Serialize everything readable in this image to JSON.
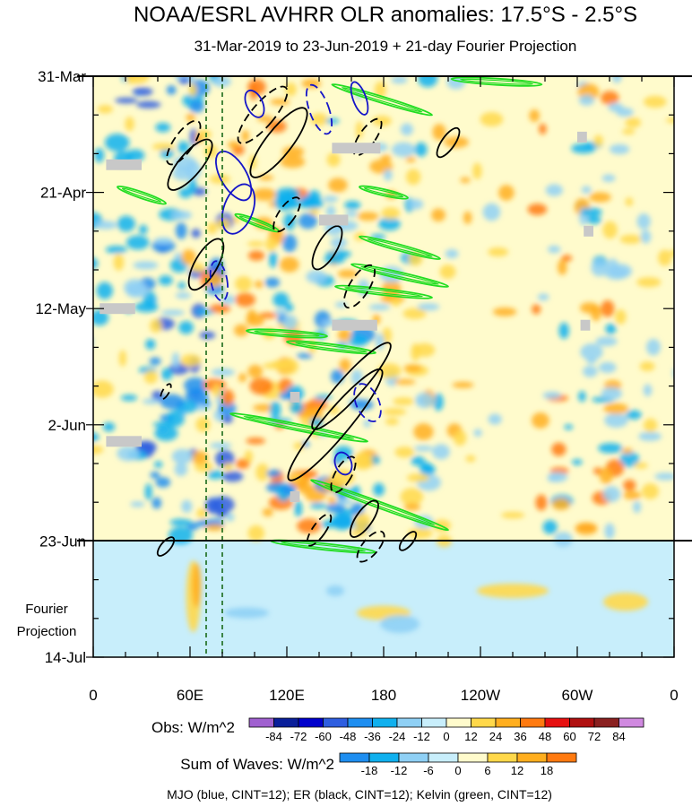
{
  "chart_data": {
    "type": "heatmap",
    "title": "NOAA/ESRL AVHRR OLR anomalies: 17.5°S - 2.5°S",
    "subtitle": "31-Mar-2019 to 23-Jun-2019 + 21-day Fourier Projection",
    "x_axis": {
      "ticks": [
        "0",
        "60E",
        "120E",
        "180",
        "120W",
        "60W",
        "0"
      ],
      "tick_values": [
        0,
        60,
        120,
        180,
        240,
        300,
        360
      ],
      "range": [
        0,
        360
      ]
    },
    "y_axis": {
      "ticks": [
        "31-Mar",
        "21-Apr",
        "12-May",
        "2-Jun",
        "23-Jun",
        "14-Jul"
      ],
      "tick_values": [
        0,
        21,
        42,
        63,
        84,
        105
      ],
      "range": [
        0,
        105
      ]
    },
    "projection_label_line1": "Fourier",
    "projection_label_line2": "Projection",
    "obs_colorbar": {
      "label": "Obs: W/m^2",
      "levels": [
        "-84",
        "-72",
        "-60",
        "-48",
        "-36",
        "-24",
        "-12",
        "0",
        "12",
        "24",
        "36",
        "48",
        "60",
        "72",
        "84"
      ],
      "colors": [
        "#a060d0",
        "#0a1f9a",
        "#0000cc",
        "#2e5ee0",
        "#1e8ef0",
        "#10b0ee",
        "#8fd0f5",
        "#c8eefb",
        "#fffbcc",
        "#ffd84a",
        "#ffae1e",
        "#ff7a10",
        "#e61010",
        "#b01010",
        "#8a2020",
        "#d089e0"
      ]
    },
    "waves_colorbar": {
      "label": "Sum of Waves: W/m^2",
      "levels": [
        "-18",
        "-12",
        "-6",
        "0",
        "6",
        "12",
        "18"
      ],
      "colors": [
        "#1e8ef0",
        "#10b0ee",
        "#8fd0f5",
        "#c8eefb",
        "#fffbcc",
        "#ffd84a",
        "#ffae1e",
        "#ff7a10"
      ]
    },
    "footer": "MJO (blue, CINT=12); ER (black, CINT=12); Kelvin (green, CINT=12)",
    "vertical_lines_x": [
      70,
      80
    ],
    "observed_end_day": 84,
    "kelvin_contours": [
      {
        "x1": 148,
        "d1": 1.5,
        "x2": 210,
        "d2": 7
      },
      {
        "x1": 222,
        "d1": 0.5,
        "x2": 278,
        "d2": 1.5
      },
      {
        "x1": 15,
        "d1": 20,
        "x2": 45,
        "d2": 23
      },
      {
        "x1": 88,
        "d1": 25,
        "x2": 115,
        "d2": 28
      },
      {
        "x1": 165,
        "d1": 20,
        "x2": 195,
        "d2": 22
      },
      {
        "x1": 165,
        "d1": 29,
        "x2": 215,
        "d2": 33
      },
      {
        "x1": 160,
        "d1": 34,
        "x2": 220,
        "d2": 38
      },
      {
        "x1": 150,
        "d1": 38,
        "x2": 210,
        "d2": 40
      },
      {
        "x1": 95,
        "d1": 46,
        "x2": 145,
        "d2": 47
      },
      {
        "x1": 120,
        "d1": 48,
        "x2": 175,
        "d2": 50
      },
      {
        "x1": 85,
        "d1": 61,
        "x2": 170,
        "d2": 66
      },
      {
        "x1": 135,
        "d1": 73,
        "x2": 220,
        "d2": 82
      },
      {
        "x1": 110,
        "d1": 84,
        "x2": 175,
        "d2": 86
      }
    ],
    "er_contours": [
      {
        "cx": 56,
        "cy": 12,
        "rx": 6,
        "ry": 18,
        "rot": 35,
        "dash": true
      },
      {
        "cx": 60,
        "cy": 16,
        "rx": 7,
        "ry": 22,
        "rot": 40,
        "dash": false
      },
      {
        "cx": 105,
        "cy": 7,
        "rx": 7,
        "ry": 25,
        "rot": 40,
        "dash": true
      },
      {
        "cx": 115,
        "cy": 12,
        "rx": 8,
        "ry": 30,
        "rot": 38,
        "dash": false
      },
      {
        "cx": 70,
        "cy": 34,
        "rx": 7,
        "ry": 20,
        "rot": 30,
        "dash": false
      },
      {
        "cx": 145,
        "cy": 31,
        "rx": 6,
        "ry": 17,
        "rot": 30,
        "dash": false
      },
      {
        "cx": 165,
        "cy": 38,
        "rx": 6,
        "ry": 17,
        "rot": 32,
        "dash": true
      },
      {
        "cx": 120,
        "cy": 25,
        "rx": 5,
        "ry": 14,
        "rot": 35,
        "dash": true
      },
      {
        "cx": 170,
        "cy": 11,
        "rx": 5,
        "ry": 15,
        "rot": 35,
        "dash": true
      },
      {
        "cx": 220,
        "cy": 12,
        "rx": 4,
        "ry": 12,
        "rot": 35,
        "dash": false
      },
      {
        "cx": 150,
        "cy": 63,
        "rx": 8,
        "ry": 50,
        "rot": 40,
        "dash": false
      },
      {
        "cx": 160,
        "cy": 56,
        "rx": 7,
        "ry": 40,
        "rot": 42,
        "dash": false
      },
      {
        "cx": 155,
        "cy": 72,
        "rx": 5,
        "ry": 14,
        "rot": 30,
        "dash": true
      },
      {
        "cx": 168,
        "cy": 80,
        "rx": 5,
        "ry": 15,
        "rot": 35,
        "dash": false
      },
      {
        "cx": 172,
        "cy": 85,
        "rx": 5,
        "ry": 13,
        "rot": 40,
        "dash": true
      },
      {
        "cx": 140,
        "cy": 82,
        "rx": 4,
        "ry": 13,
        "rot": 35,
        "dash": true
      },
      {
        "cx": 45,
        "cy": 57,
        "rx": 2,
        "ry": 6,
        "rot": 30,
        "dash": true
      },
      {
        "cx": 45,
        "cy": 85,
        "rx": 3,
        "ry": 8,
        "rot": 40,
        "dash": false
      },
      {
        "cx": 195,
        "cy": 84,
        "rx": 3,
        "ry": 8,
        "rot": 40,
        "dash": false
      }
    ],
    "mjo_contours": [
      {
        "cx": 87,
        "cy": 18,
        "rx": 8,
        "ry": 19,
        "rot": -30,
        "dash": false
      },
      {
        "cx": 90,
        "cy": 24,
        "rx": 9,
        "ry": 18,
        "rot": 20,
        "dash": false
      },
      {
        "cx": 78,
        "cy": 37,
        "rx": 5,
        "ry": 14,
        "rot": -10,
        "dash": true
      },
      {
        "cx": 140,
        "cy": 6,
        "rx": 6,
        "ry": 18,
        "rot": -20,
        "dash": true
      },
      {
        "cx": 165,
        "cy": 4,
        "rx": 4,
        "ry": 12,
        "rot": -20,
        "dash": false
      },
      {
        "cx": 170,
        "cy": 59,
        "rx": 7,
        "ry": 14,
        "rot": -25,
        "dash": true
      },
      {
        "cx": 155,
        "cy": 70,
        "rx": 5,
        "ry": 8,
        "rot": -20,
        "dash": false
      },
      {
        "cx": 100,
        "cy": 5,
        "rx": 5,
        "ry": 10,
        "rot": -25,
        "dash": false
      }
    ]
  }
}
